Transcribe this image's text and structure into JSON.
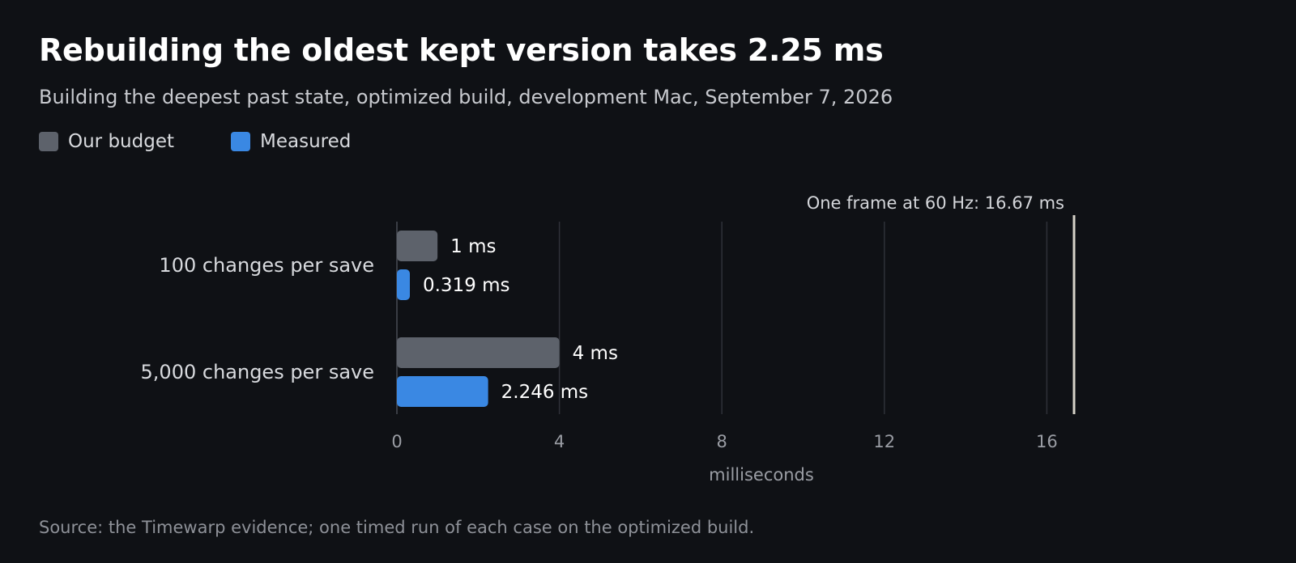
{
  "title": "Rebuilding the oldest kept version takes 2.25 ms",
  "subtitle": "Building the deepest past state, optimized build, development Mac, September 7, 2026",
  "source": "Source: the Timewarp evidence; one timed run of each case on the optimized build.",
  "colors": {
    "background": "#0f1115",
    "budget": "#5d626b",
    "measured": "#3a88e3",
    "grid": "#2e3138",
    "reference_line": "#d6d2c8"
  },
  "chart_data": {
    "type": "bar",
    "orientation": "horizontal",
    "title": "Rebuilding the oldest kept version takes 2.25 ms",
    "subtitle": "Building the deepest past state, optimized build, development Mac, September 7, 2026",
    "categories": [
      "100 changes per save",
      "5,000 changes per save"
    ],
    "series": [
      {
        "name": "Our budget",
        "values": [
          1,
          4
        ],
        "labels": [
          "1 ms",
          "4 ms"
        ]
      },
      {
        "name": "Measured",
        "values": [
          0.319,
          2.246
        ],
        "labels": [
          "0.319 ms",
          "2.246 ms"
        ]
      }
    ],
    "xlabel": "milliseconds",
    "ylabel": "",
    "xlim": [
      0,
      16.67
    ],
    "xticks": [
      0,
      4,
      8,
      12,
      16
    ],
    "xtick_labels": [
      "0",
      "4",
      "8",
      "12",
      "16"
    ],
    "grid": true,
    "legend_position": "top-left",
    "reference_line": {
      "value": 16.67,
      "label": "One frame at 60 Hz: 16.67 ms"
    }
  }
}
